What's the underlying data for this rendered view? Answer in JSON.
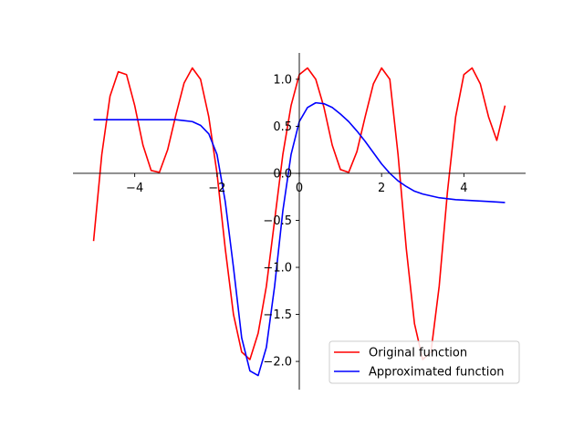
{
  "chart_data": {
    "type": "line",
    "title": "",
    "xlabel": "",
    "ylabel": "",
    "xlim": [
      -5.5,
      5.5
    ],
    "ylim": [
      -2.3,
      1.28
    ],
    "grid": false,
    "legend_position": "bottom-right",
    "spine_style": "centered-axes",
    "x_ticks": [
      -4,
      -2,
      0,
      2,
      4
    ],
    "x_tick_labels": [
      "−4",
      "−2",
      "0",
      "2",
      "4"
    ],
    "y_ticks": [
      1.0,
      0.5,
      0.0,
      -0.5,
      -1.0,
      -1.5,
      -2.0
    ],
    "y_tick_labels": [
      "1.0",
      "0.5",
      "0.0",
      "−0.5",
      "−1.0",
      "−1.5",
      "−2.0"
    ],
    "series": [
      {
        "name": "Original function",
        "color": "#ff0000",
        "x": [
          -5.0,
          -4.8,
          -4.6,
          -4.4,
          -4.2,
          -4.0,
          -3.8,
          -3.6,
          -3.4,
          -3.2,
          -3.0,
          -2.8,
          -2.6,
          -2.4,
          -2.2,
          -2.0,
          -1.8,
          -1.6,
          -1.4,
          -1.2,
          -1.0,
          -0.8,
          -0.6,
          -0.4,
          -0.2,
          0.0,
          0.2,
          0.4,
          0.6,
          0.8,
          1.0,
          1.2,
          1.4,
          1.6,
          1.8,
          2.0,
          2.2,
          2.4,
          2.6,
          2.8,
          3.0,
          3.2,
          3.4,
          3.6,
          3.8,
          4.0,
          4.2,
          4.4,
          4.6,
          4.8,
          5.0
        ],
        "y": [
          -0.72,
          0.2,
          0.82,
          1.08,
          1.05,
          0.72,
          0.3,
          0.03,
          0.01,
          0.25,
          0.62,
          0.96,
          1.12,
          1.0,
          0.6,
          0.0,
          -0.8,
          -1.5,
          -1.9,
          -1.98,
          -1.7,
          -1.2,
          -0.5,
          0.2,
          0.72,
          1.05,
          1.12,
          1.0,
          0.7,
          0.3,
          0.04,
          0.01,
          0.23,
          0.6,
          0.95,
          1.12,
          1.0,
          0.2,
          -0.8,
          -1.6,
          -1.98,
          -1.9,
          -1.2,
          -0.2,
          0.6,
          1.05,
          1.12,
          0.95,
          0.6,
          0.35,
          0.72
        ]
      },
      {
        "name": "Approximated function",
        "color": "#0000ff",
        "x": [
          -5.0,
          -4.6,
          -4.2,
          -3.8,
          -3.4,
          -3.0,
          -2.8,
          -2.6,
          -2.4,
          -2.2,
          -2.0,
          -1.8,
          -1.6,
          -1.4,
          -1.2,
          -1.0,
          -0.8,
          -0.6,
          -0.4,
          -0.2,
          0.0,
          0.2,
          0.4,
          0.6,
          0.8,
          1.0,
          1.2,
          1.4,
          1.6,
          1.8,
          2.0,
          2.2,
          2.4,
          2.6,
          2.8,
          3.0,
          3.4,
          3.8,
          4.2,
          4.6,
          5.0
        ],
        "y": [
          0.57,
          0.57,
          0.57,
          0.57,
          0.57,
          0.57,
          0.56,
          0.55,
          0.51,
          0.42,
          0.2,
          -0.3,
          -1.0,
          -1.75,
          -2.1,
          -2.15,
          -1.85,
          -1.2,
          -0.4,
          0.2,
          0.55,
          0.7,
          0.75,
          0.74,
          0.7,
          0.63,
          0.55,
          0.45,
          0.34,
          0.22,
          0.1,
          0.0,
          -0.08,
          -0.14,
          -0.19,
          -0.22,
          -0.26,
          -0.28,
          -0.29,
          -0.3,
          -0.31
        ]
      }
    ]
  }
}
